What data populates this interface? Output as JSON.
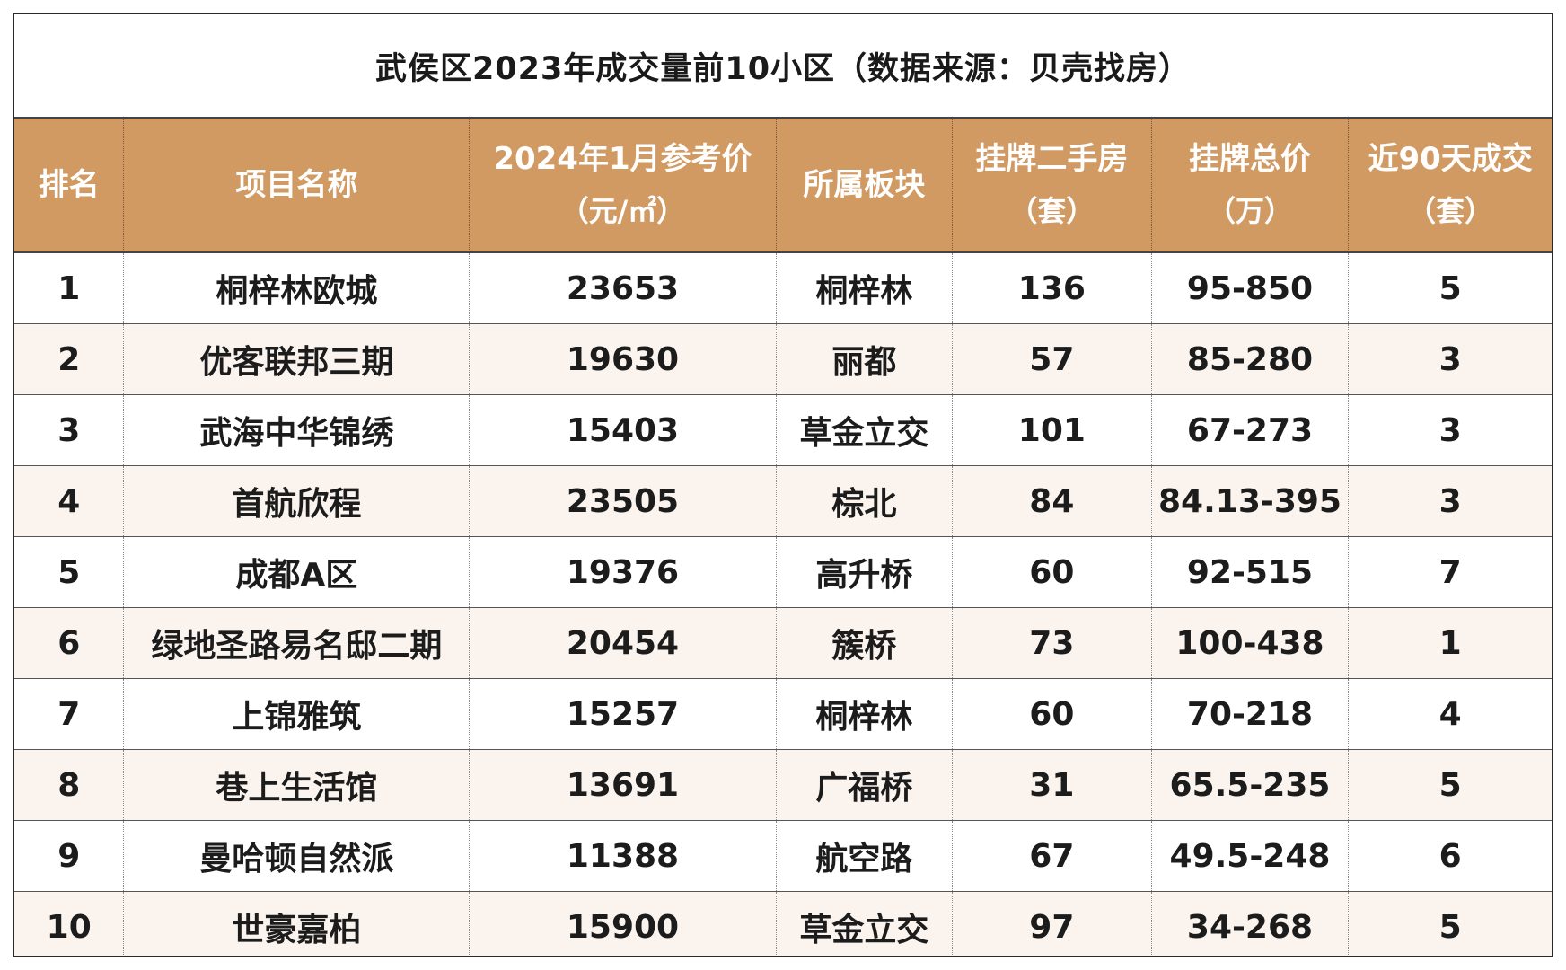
{
  "chart_data": {
    "type": "table",
    "title": "武侯区2023年成交量前10小区（数据来源：贝壳找房）",
    "columns": [
      {
        "label": "排名",
        "sub": ""
      },
      {
        "label": "项目名称",
        "sub": ""
      },
      {
        "label": "2024年1月参考价",
        "sub": "（元/㎡）"
      },
      {
        "label": "所属板块",
        "sub": ""
      },
      {
        "label": "挂牌二手房",
        "sub": "（套）"
      },
      {
        "label": "挂牌总价",
        "sub": "（万）"
      },
      {
        "label": "近90天成交",
        "sub": "（套）"
      }
    ],
    "rows": [
      [
        "1",
        "桐梓林欧城",
        "23653",
        "桐梓林",
        "136",
        "95-850",
        "5"
      ],
      [
        "2",
        "优客联邦三期",
        "19630",
        "丽都",
        "57",
        "85-280",
        "3"
      ],
      [
        "3",
        "武海中华锦绣",
        "15403",
        "草金立交",
        "101",
        "67-273",
        "3"
      ],
      [
        "4",
        "首航欣程",
        "23505",
        "棕北",
        "84",
        "84.13-395",
        "3"
      ],
      [
        "5",
        "成都A区",
        "19376",
        "高升桥",
        "60",
        "92-515",
        "7"
      ],
      [
        "6",
        "绿地圣路易名邸二期",
        "20454",
        "簇桥",
        "73",
        "100-438",
        "1"
      ],
      [
        "7",
        "上锦雅筑",
        "15257",
        "桐梓林",
        "60",
        "70-218",
        "4"
      ],
      [
        "8",
        "巷上生活馆",
        "13691",
        "广福桥",
        "31",
        "65.5-235",
        "5"
      ],
      [
        "9",
        "曼哈顿自然派",
        "11388",
        "航空路",
        "67",
        "49.5-248",
        "6"
      ],
      [
        "10",
        "世豪嘉柏",
        "15900",
        "草金立交",
        "97",
        "34-268",
        "5"
      ]
    ]
  },
  "colors": {
    "header_bg": "#d29a63",
    "header_text": "#ffffff",
    "even_row_bg": "#fbf4ee",
    "border": "#2a2a2a"
  }
}
